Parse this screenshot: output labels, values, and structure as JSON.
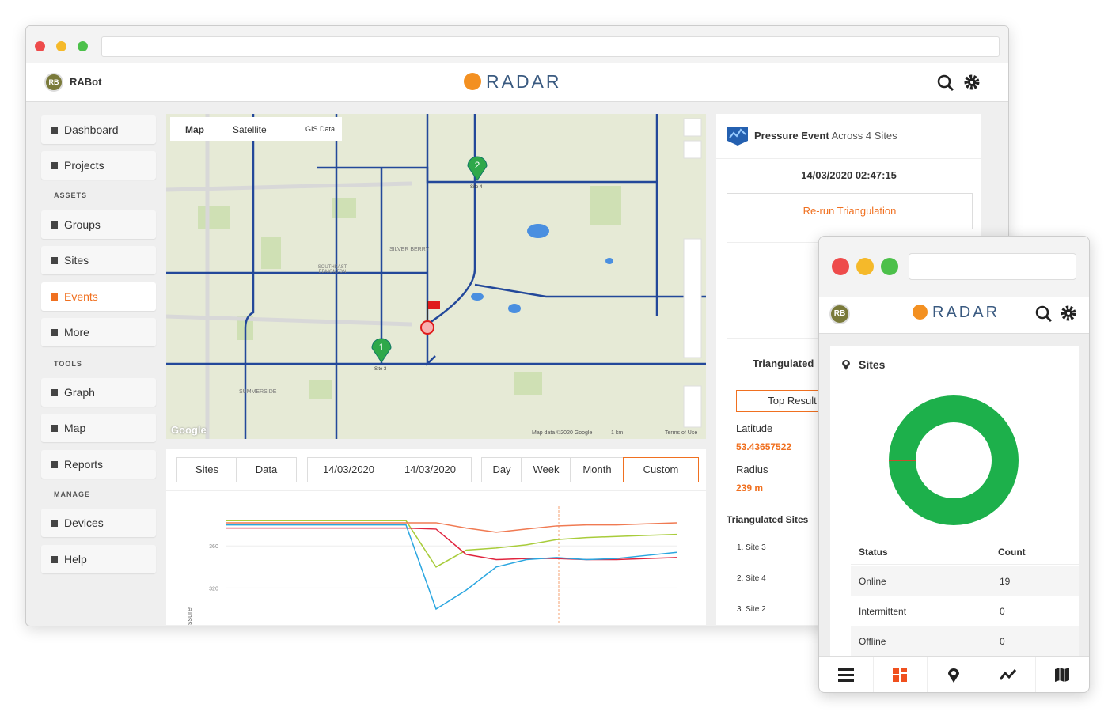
{
  "browser": {
    "user_initials": "RB",
    "user_name": "RABot",
    "logo": "RADAR"
  },
  "sidebar": {
    "items": [
      "Dashboard",
      "Projects",
      "Groups",
      "Sites",
      "Events",
      "More",
      "Graph",
      "Map",
      "Reports",
      "Devices",
      "Help"
    ],
    "sections": [
      "ASSETS",
      "TOOLS",
      "MANAGE"
    ],
    "active": 4
  },
  "map": {
    "tabs": [
      "Map",
      "Satellite",
      "GIS Data"
    ],
    "places": [
      "SILVER BERRY",
      "SOUTHEAST EDMONTON",
      "SUMMERSIDE"
    ],
    "pins": [
      {
        "number": "1",
        "label": "Site 3"
      },
      {
        "number": "2",
        "label": "Site 4"
      }
    ],
    "attribution": "Map data ©2020 Google",
    "scale": "1 km",
    "terms": "Terms of Use",
    "brand": "Google"
  },
  "filters": {
    "tabs": [
      "Sites",
      "Data"
    ],
    "dates": [
      "14/03/2020",
      "14/03/2020"
    ],
    "ranges": [
      "Day",
      "Week",
      "Month",
      "Custom"
    ],
    "active_range": 3
  },
  "chart_data": {
    "type": "line",
    "y_label": "ssure",
    "ylim": [
      285,
      400
    ],
    "yticks": [
      360,
      320
    ],
    "grid": true,
    "series": [
      {
        "color": "#a8cc3a",
        "values": [
          384,
          384,
          384,
          384,
          384,
          384,
          384,
          340,
          356,
          358,
          361,
          366,
          368,
          369,
          370,
          371
        ]
      },
      {
        "color": "#f07a52",
        "values": [
          382,
          382,
          382,
          382,
          382,
          382,
          382,
          382,
          377,
          373,
          376,
          379,
          380,
          380,
          381,
          382
        ]
      },
      {
        "color": "#e0243e",
        "values": [
          377,
          377,
          377,
          377,
          377,
          377,
          377,
          376,
          352,
          347,
          348,
          348,
          347,
          347,
          348,
          349
        ]
      },
      {
        "color": "#2aa6e0",
        "values": [
          380,
          380,
          380,
          380,
          380,
          380,
          380,
          300,
          318,
          340,
          347,
          349,
          347,
          348,
          351,
          354
        ]
      }
    ]
  },
  "event": {
    "title_bold": "Pressure Event",
    "title_rest": "Across 4 Sites",
    "timestamp": "14/03/2020 02:47:15",
    "action": "Re-run Triangulation",
    "triangulated_heading": "Triangulated",
    "top_result": "Top Result",
    "latitude_label": "Latitude",
    "latitude": "53.43657522",
    "radius_label": "Radius",
    "radius": "239 m",
    "sites_heading": "Triangulated Sites",
    "sites": [
      "1. Site 3",
      "2. Site 4",
      "3. Site 2"
    ]
  },
  "mobile": {
    "user_initials": "RB",
    "logo": "RADAR",
    "card_title": "Sites",
    "nav_active": 1,
    "status_chart": {
      "type": "donut",
      "column_headers": [
        "Status",
        "Count"
      ],
      "categories": [
        "Online",
        "Intermittent",
        "Offline"
      ],
      "values": [
        19,
        0,
        0
      ],
      "colors": [
        "#1db04b",
        "#f0a030",
        "#e0302a"
      ]
    }
  }
}
